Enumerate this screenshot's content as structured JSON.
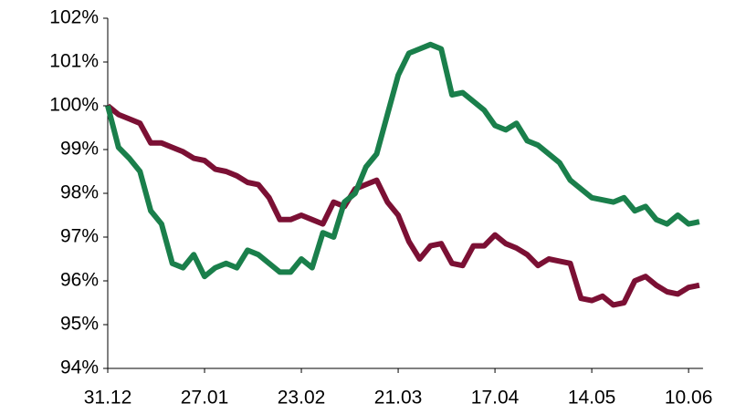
{
  "chart_data": {
    "type": "line",
    "categories": [
      "31.12",
      null,
      null,
      null,
      null,
      null,
      null,
      null,
      null,
      "27.01",
      null,
      null,
      null,
      null,
      null,
      null,
      null,
      null,
      "23.02",
      null,
      null,
      null,
      null,
      null,
      null,
      null,
      null,
      "21.03",
      null,
      null,
      null,
      null,
      null,
      null,
      null,
      null,
      "17.04",
      null,
      null,
      null,
      null,
      null,
      null,
      null,
      null,
      "14.05",
      null,
      null,
      null,
      null,
      null,
      null,
      null,
      null,
      "10.06",
      null
    ],
    "series": [
      {
        "color": "#1a7f4b",
        "values": [
          100,
          99.05,
          98.8,
          98.5,
          97.6,
          97.3,
          96.4,
          96.3,
          96.6,
          96.1,
          96.3,
          96.4,
          96.3,
          96.7,
          96.6,
          96.4,
          96.2,
          96.2,
          96.5,
          96.3,
          97.1,
          97.0,
          97.8,
          98.0,
          98.6,
          98.9,
          99.8,
          100.7,
          101.2,
          101.3,
          101.4,
          101.3,
          100.25,
          100.3,
          100.1,
          99.9,
          99.55,
          99.45,
          99.6,
          99.2,
          99.1,
          98.9,
          98.7,
          98.3,
          98.1,
          97.9,
          97.85,
          97.8,
          97.9,
          97.6,
          97.7,
          97.4,
          97.3,
          97.5,
          97.3,
          97.35
        ]
      },
      {
        "color": "#7b1034",
        "values": [
          100,
          99.8,
          99.7,
          99.6,
          99.15,
          99.15,
          99.05,
          98.95,
          98.8,
          98.75,
          98.55,
          98.5,
          98.4,
          98.25,
          98.2,
          97.9,
          97.4,
          97.4,
          97.5,
          97.4,
          97.3,
          97.8,
          97.7,
          98.1,
          98.2,
          98.3,
          97.8,
          97.5,
          96.9,
          96.5,
          96.8,
          96.85,
          96.4,
          96.35,
          96.8,
          96.8,
          97.05,
          96.85,
          96.75,
          96.6,
          96.35,
          96.5,
          96.45,
          96.4,
          95.6,
          95.55,
          95.65,
          95.45,
          95.5,
          96.0,
          96.1,
          95.9,
          95.75,
          95.7,
          95.85,
          95.9
        ]
      }
    ],
    "ylim": [
      94,
      102
    ],
    "yticks": [
      {
        "value": 94,
        "label": "94%"
      },
      {
        "value": 95,
        "label": "95%"
      },
      {
        "value": 96,
        "label": "96%"
      },
      {
        "value": 97,
        "label": "97%"
      },
      {
        "value": 98,
        "label": "98%"
      },
      {
        "value": 99,
        "label": "99%"
      },
      {
        "value": 100,
        "label": "100%"
      },
      {
        "value": 101,
        "label": "101%"
      },
      {
        "value": 102,
        "label": "102%"
      }
    ],
    "grid": false
  }
}
